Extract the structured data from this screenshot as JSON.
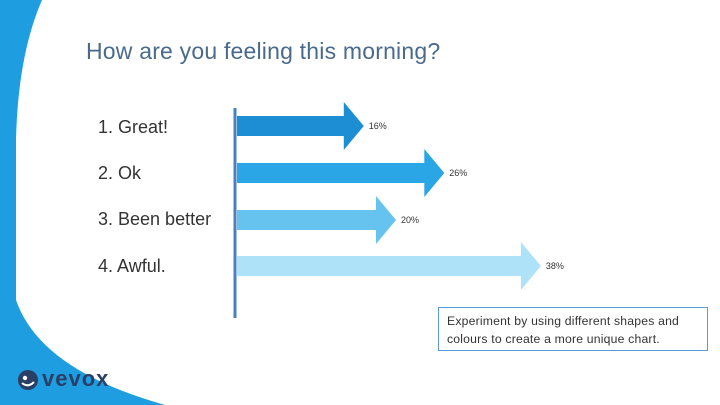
{
  "question": "How are you feeling this morning?",
  "note": "Experiment by using different shapes and colours to create a more unique chart.",
  "logo_text": "vevox",
  "colors": {
    "accent": "#1e9de0",
    "axis": "#4a7fc1",
    "note_border": "#5b9bd5"
  },
  "chart_data": {
    "type": "bar",
    "orientation": "horizontal",
    "categories": [
      "1. Great!",
      "2. Ok",
      "3. Been better",
      "4. Awful."
    ],
    "values": [
      16,
      26,
      20,
      38
    ],
    "value_labels": [
      "16%",
      "26%",
      "20%",
      "38%"
    ],
    "unit": "%",
    "colors": [
      "#1e8ed4",
      "#2aa5e6",
      "#66c3f0",
      "#aee2f8"
    ],
    "xlim": [
      0,
      40
    ],
    "grid": false,
    "legend": "none"
  }
}
